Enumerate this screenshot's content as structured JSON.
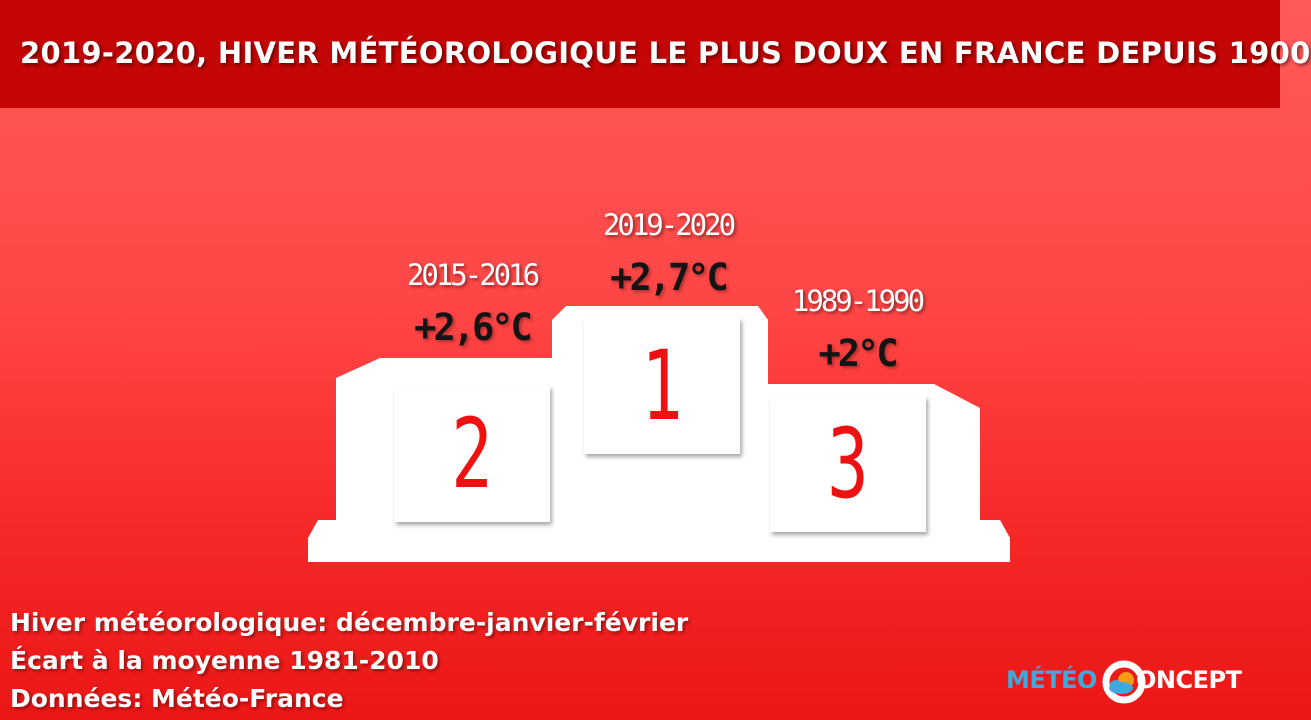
{
  "header": {
    "title": "2019-2020, HIVER MÉTÉOROLOGIQUE LE PLUS DOUX EN FRANCE DEPUIS 1900"
  },
  "podium": {
    "first": {
      "rank": "1",
      "period": "2019-2020",
      "anomaly": "+2,7°C"
    },
    "second": {
      "rank": "2",
      "period": "2015-2016",
      "anomaly": "+2,6°C"
    },
    "third": {
      "rank": "3",
      "period": "1989-1990",
      "anomaly": "+2°C"
    }
  },
  "footer": {
    "line1": "Hiver météorologique: décembre-janvier-février",
    "line2": "Écart à la moyenne 1981-2010",
    "line3": "Données: Météo-France"
  },
  "logo": {
    "part1": "MÉTÉO",
    "part2": "ONCEPT"
  },
  "colors": {
    "header_background": "#c40606",
    "rank_numbers": "#ee1111",
    "logo_blue": "#3fa9dd",
    "logo_orange": "#f39c12"
  }
}
